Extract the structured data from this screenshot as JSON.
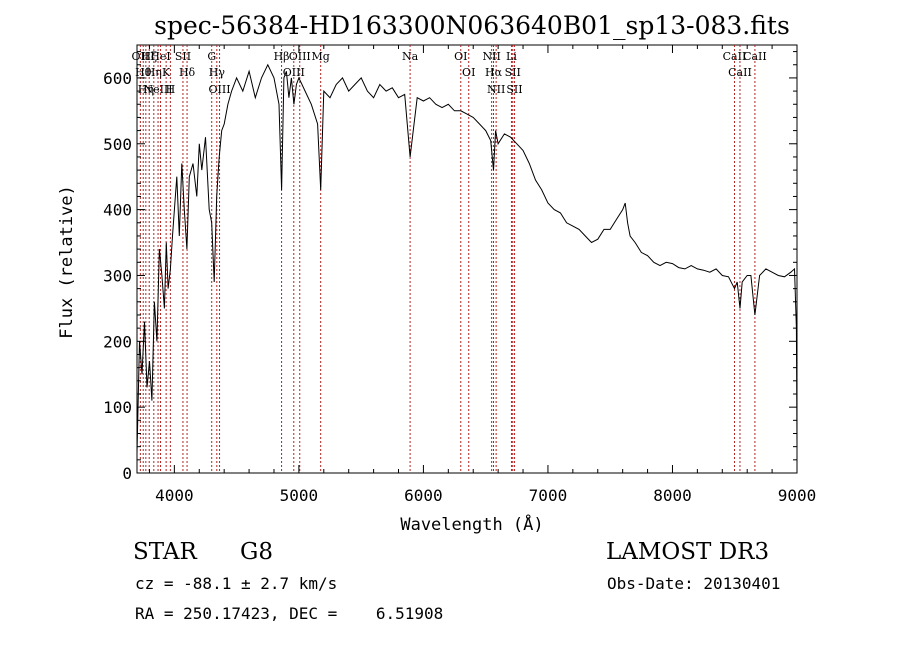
{
  "chart_data": {
    "type": "line",
    "title": "spec-56384-HD163300N063640B01_sp13-083.fits",
    "xlabel": "Wavelength (Å)",
    "ylabel": "Flux (relative)",
    "xlim": [
      3700,
      9000
    ],
    "ylim": [
      0,
      650
    ],
    "x_ticks": [
      4000,
      5000,
      6000,
      7000,
      8000,
      9000
    ],
    "y_ticks": [
      0,
      100,
      200,
      300,
      400,
      500,
      600
    ],
    "grid": false,
    "series": [
      {
        "name": "flux",
        "x": [
          3700,
          3720,
          3740,
          3760,
          3780,
          3800,
          3820,
          3840,
          3860,
          3880,
          3900,
          3920,
          3935,
          3950,
          3968,
          3985,
          4000,
          4020,
          4040,
          4060,
          4080,
          4101,
          4120,
          4150,
          4180,
          4200,
          4220,
          4250,
          4280,
          4300,
          4320,
          4340,
          4360,
          4380,
          4400,
          4430,
          4460,
          4500,
          4550,
          4600,
          4650,
          4700,
          4750,
          4800,
          4820,
          4840,
          4861,
          4880,
          4900,
          4920,
          4940,
          4960,
          4980,
          5000,
          5050,
          5100,
          5150,
          5175,
          5200,
          5250,
          5300,
          5350,
          5400,
          5450,
          5500,
          5550,
          5600,
          5650,
          5700,
          5750,
          5800,
          5850,
          5893,
          5950,
          6000,
          6050,
          6100,
          6150,
          6200,
          6250,
          6300,
          6350,
          6400,
          6450,
          6500,
          6540,
          6563,
          6580,
          6600,
          6650,
          6700,
          6750,
          6800,
          6850,
          6900,
          6950,
          7000,
          7050,
          7100,
          7150,
          7200,
          7250,
          7300,
          7350,
          7400,
          7450,
          7500,
          7550,
          7600,
          7620,
          7640,
          7660,
          7700,
          7750,
          7800,
          7850,
          7900,
          7950,
          8000,
          8050,
          8100,
          8150,
          8200,
          8250,
          8300,
          8350,
          8400,
          8450,
          8498,
          8520,
          8542,
          8560,
          8600,
          8630,
          8662,
          8700,
          8750,
          8800,
          8850,
          8900,
          8950,
          8980,
          8995,
          9000
        ],
        "values": [
          30,
          200,
          150,
          230,
          130,
          170,
          110,
          260,
          200,
          340,
          300,
          250,
          350,
          280,
          310,
          360,
          400,
          450,
          360,
          470,
          400,
          340,
          450,
          470,
          420,
          500,
          460,
          510,
          400,
          380,
          290,
          420,
          480,
          520,
          530,
          560,
          580,
          600,
          580,
          610,
          570,
          600,
          620,
          600,
          580,
          560,
          430,
          600,
          610,
          570,
          600,
          560,
          590,
          600,
          580,
          560,
          530,
          430,
          580,
          570,
          590,
          600,
          580,
          590,
          600,
          580,
          570,
          590,
          580,
          585,
          570,
          575,
          480,
          570,
          565,
          570,
          560,
          555,
          560,
          550,
          550,
          545,
          540,
          530,
          520,
          505,
          460,
          520,
          500,
          515,
          510,
          500,
          490,
          470,
          445,
          430,
          410,
          400,
          395,
          380,
          375,
          370,
          360,
          350,
          355,
          370,
          370,
          385,
          400,
          410,
          380,
          360,
          350,
          335,
          330,
          320,
          315,
          320,
          318,
          312,
          310,
          315,
          310,
          308,
          305,
          310,
          300,
          298,
          280,
          290,
          250,
          290,
          300,
          300,
          240,
          300,
          310,
          305,
          300,
          298,
          305,
          310,
          220,
          40
        ]
      }
    ],
    "lines": [
      {
        "x": 3727,
        "label": "OII"
      },
      {
        "x": 3750,
        "label": "Hθ"
      },
      {
        "x": 3771,
        "label": "Hη"
      },
      {
        "x": 3798,
        "label": "Hζ"
      },
      {
        "x": 3835,
        "label": "Hη"
      },
      {
        "x": 3869,
        "label": "NeIII"
      },
      {
        "x": 3889,
        "label": "HeI"
      },
      {
        "x": 3934,
        "label": "K"
      },
      {
        "x": 3968,
        "label": "H"
      },
      {
        "x": 4069,
        "label": "SII"
      },
      {
        "x": 4102,
        "label": "Hδ"
      },
      {
        "x": 4300,
        "label": "G"
      },
      {
        "x": 4341,
        "label": "Hγ"
      },
      {
        "x": 4363,
        "label": "OIII"
      },
      {
        "x": 4861,
        "label": "Hβ"
      },
      {
        "x": 4959,
        "label": "OIII"
      },
      {
        "x": 5007,
        "label": "OIII"
      },
      {
        "x": 5175,
        "label": "Mg"
      },
      {
        "x": 5893,
        "label": "Na"
      },
      {
        "x": 6300,
        "label": "OI"
      },
      {
        "x": 6364,
        "label": "OI"
      },
      {
        "x": 6548,
        "label": "NII"
      },
      {
        "x": 6563,
        "label": "Hα"
      },
      {
        "x": 6584,
        "label": "NII"
      },
      {
        "x": 6707,
        "label": "Li"
      },
      {
        "x": 6717,
        "label": "SII"
      },
      {
        "x": 6731,
        "label": "SII"
      },
      {
        "x": 8498,
        "label": "CaII"
      },
      {
        "x": 8542,
        "label": "CaII"
      },
      {
        "x": 8662,
        "label": "CaII"
      }
    ]
  },
  "info": {
    "object_class": "STAR",
    "subclass": "G8",
    "survey": "LAMOST DR3",
    "redshift": "cz = -88.1 ± 2.7 km/s",
    "obs_date": "Obs-Date: 20130401",
    "coords": "RA = 250.17423, DEC =    6.51908"
  },
  "colors": {
    "spectrum": "#000000",
    "line_marker": "#b22222",
    "axis": "#000000"
  }
}
